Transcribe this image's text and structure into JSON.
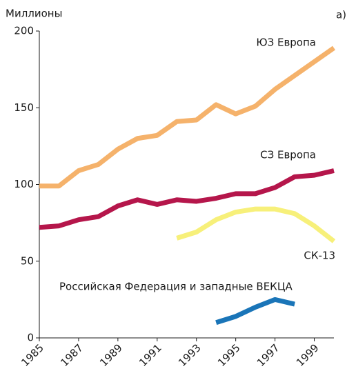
{
  "chart_data": {
    "type": "line",
    "y_label": "Миллионы",
    "annotation": "а)",
    "x": [
      1985,
      1986,
      1987,
      1988,
      1989,
      1990,
      1991,
      1992,
      1993,
      1994,
      1995,
      1996,
      1997,
      1998,
      1999,
      2000
    ],
    "series": [
      {
        "name": "ЮЗ Европа",
        "color": "#f5b26b",
        "values": [
          99,
          99,
          109,
          113,
          123,
          130,
          132,
          141,
          142,
          152,
          146,
          151,
          162,
          171,
          180,
          189
        ]
      },
      {
        "name": "СЗ Европа",
        "color": "#b5164b",
        "values": [
          72,
          73,
          77,
          79,
          86,
          90,
          87,
          90,
          89,
          91,
          94,
          94,
          98,
          105,
          106,
          109
        ]
      },
      {
        "name": "СК-13",
        "color": "#f7f07a",
        "values": [
          null,
          null,
          null,
          null,
          null,
          null,
          null,
          65,
          69,
          77,
          82,
          84,
          84,
          81,
          73,
          63
        ]
      },
      {
        "name": "Российская Федерация и западные ВЕКЦА",
        "color": "#1a75b8",
        "values": [
          null,
          null,
          null,
          null,
          null,
          null,
          null,
          null,
          null,
          10,
          14,
          20,
          25,
          22,
          null,
          null
        ]
      }
    ],
    "xlim": [
      1985,
      2000
    ],
    "xticks": [
      1985,
      1987,
      1989,
      1991,
      1993,
      1995,
      1997,
      1999
    ],
    "ylim": [
      0,
      200
    ],
    "yticks": [
      0,
      50,
      100,
      150,
      200
    ],
    "grid": false
  }
}
